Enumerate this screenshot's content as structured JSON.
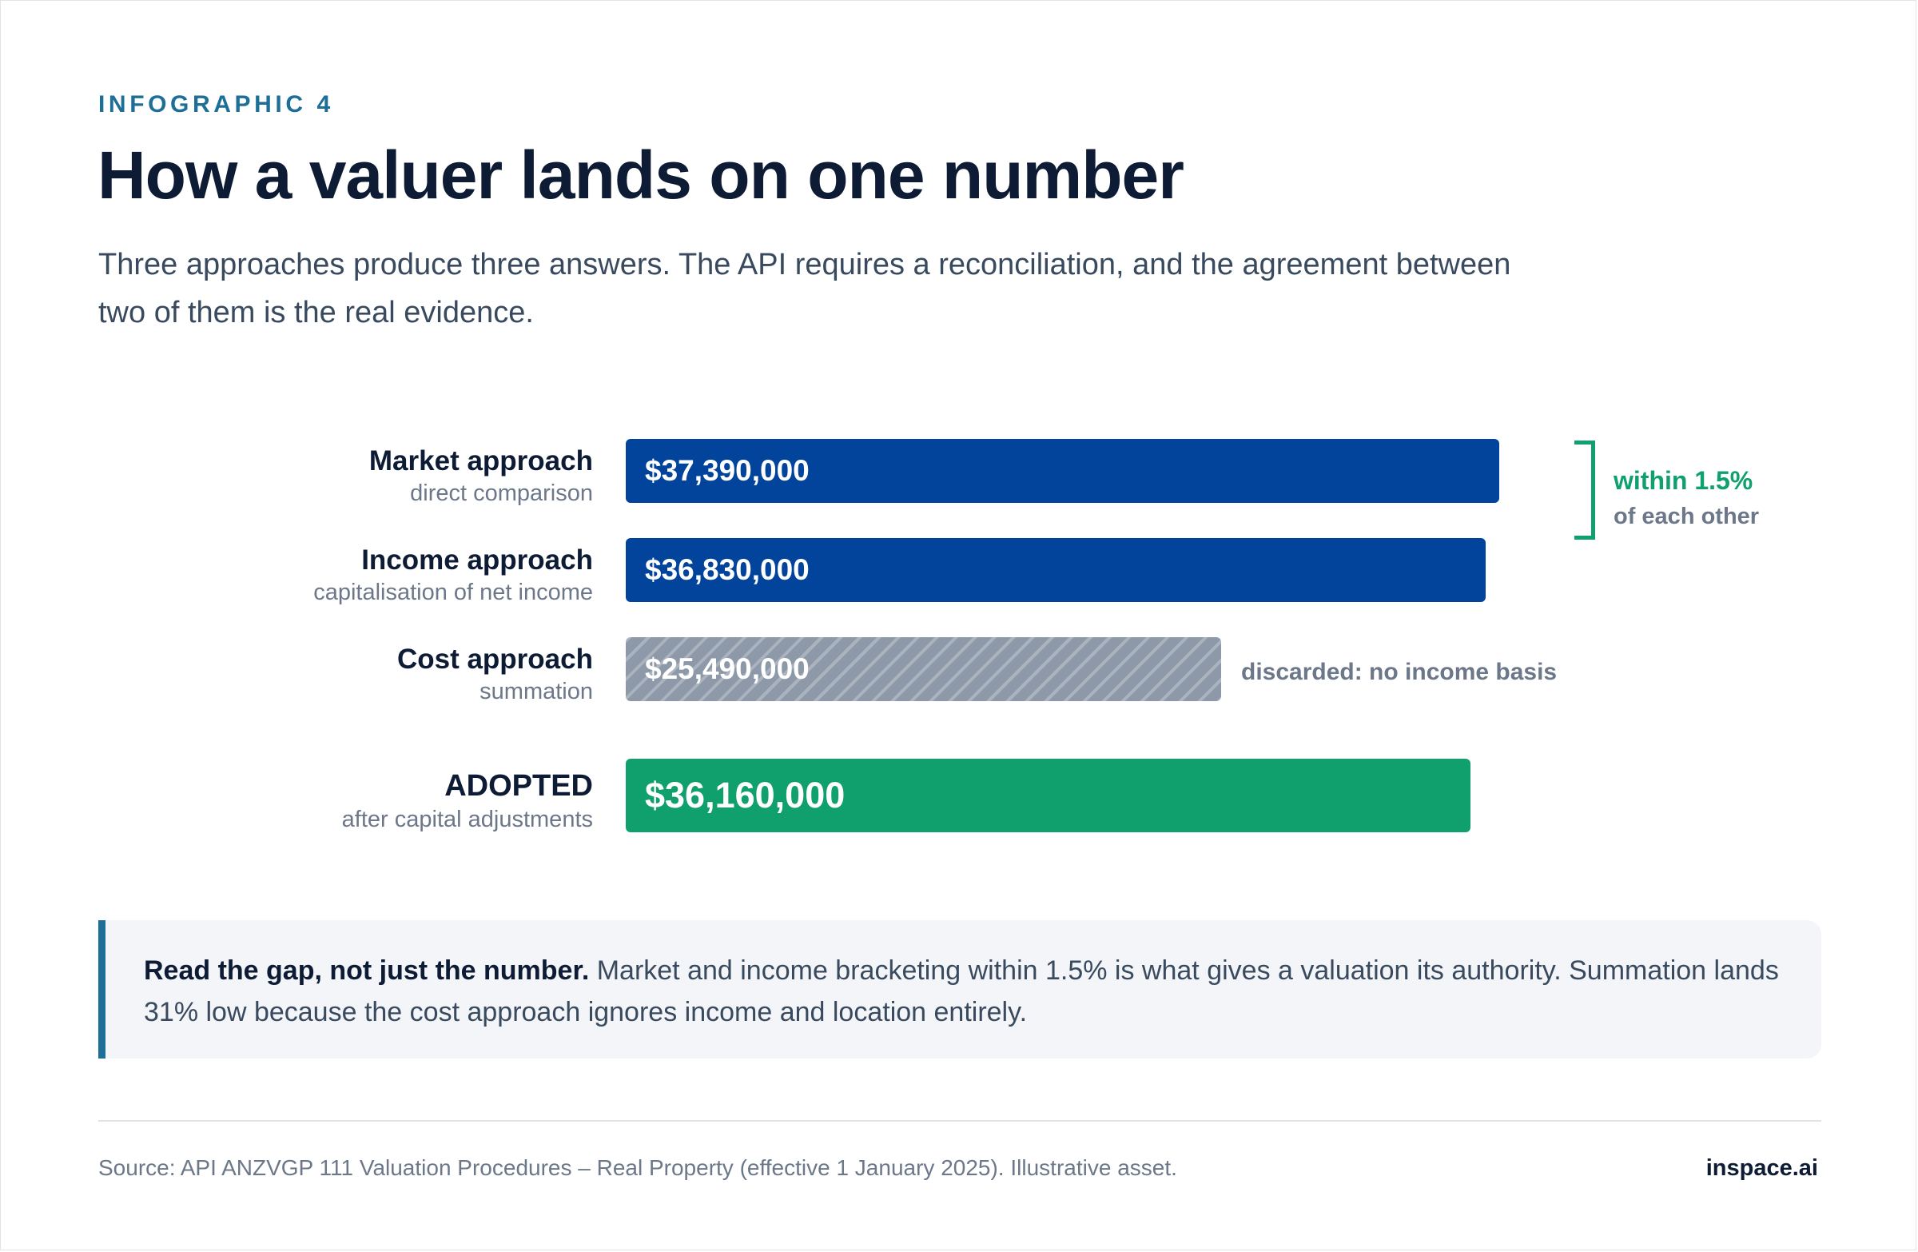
{
  "header": {
    "eyebrow": "INFOGRAPHIC 4",
    "title": "How a valuer lands on one number",
    "subtitle": "Three approaches produce three answers. The API requires a reconciliation, and the agreement between two of them is the real evidence."
  },
  "chart_data": {
    "type": "bar",
    "orientation": "horizontal",
    "categories": [
      "Market approach",
      "Income approach",
      "Cost approach",
      "ADOPTED"
    ],
    "category_descriptions": [
      "direct comparison",
      "capitalisation of net income",
      "summation",
      "after capital adjustments"
    ],
    "values": [
      37390000,
      36830000,
      25490000,
      36160000
    ],
    "value_labels": [
      "$37,390,000",
      "$36,830,000",
      "$25,490,000",
      "$36,160,000"
    ],
    "bar_styles": [
      "solid",
      "solid",
      "hatched",
      "solid"
    ],
    "bar_colors": [
      "#02449b",
      "#02449b",
      "#8d98a8",
      "#10a06e"
    ],
    "xlim": [
      0,
      49000000
    ],
    "grid": false,
    "annotations": {
      "discarded_note": "discarded: no income basis",
      "bracket_top": "within 1.5%",
      "bracket_bottom": "of each other"
    }
  },
  "callout": {
    "lead": "Read the gap, not just the number.",
    "body": "Market and income bracketing within 1.5% is what gives a valuation its authority. Summation lands 31% low because the cost approach ignores income and location entirely.",
    "accent_color": "#1d6f98"
  },
  "footer": {
    "source": "Source: API ANZVGP 111 Valuation Procedures – Real Property (effective 1 January 2025). Illustrative asset.",
    "brand": "inspace.ai"
  }
}
